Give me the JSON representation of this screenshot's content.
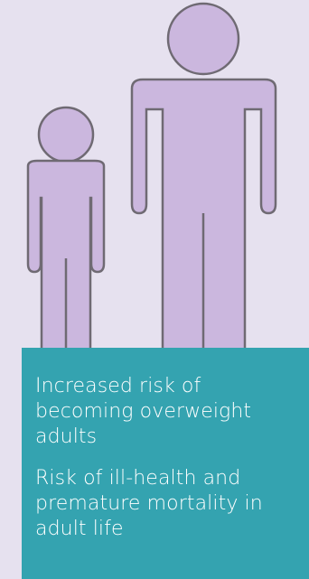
{
  "colors": {
    "background": "#e6e1ef",
    "figure_fill": "#cbb7de",
    "figure_outline": "#6f6a73",
    "panel": "#34a3b0",
    "panel_text": "#ffffff"
  },
  "figures": [
    {
      "name": "child",
      "icon": "child-person-icon"
    },
    {
      "name": "adult",
      "icon": "adult-person-icon"
    }
  ],
  "panel": {
    "risk_1": "Increased risk of becoming overweight adults",
    "risk_2": "Risk of ill-health and premature mortality in adult life"
  }
}
